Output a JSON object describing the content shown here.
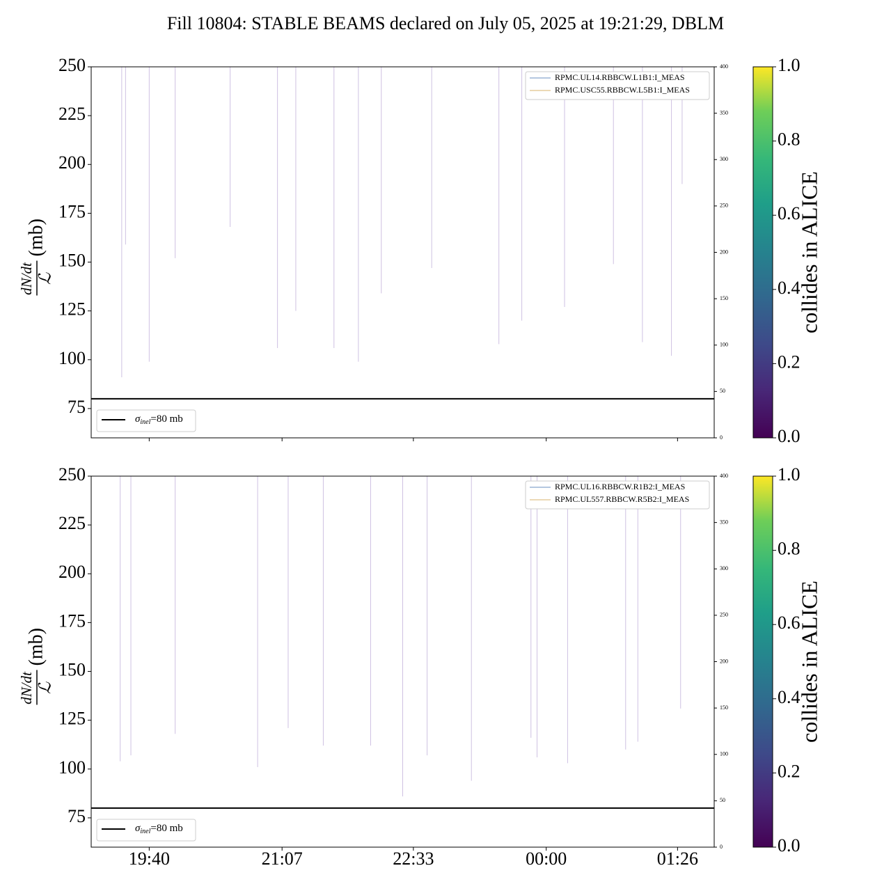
{
  "title": "Fill 10804: STABLE BEAMS declared on July 05, 2025 at 19:21:29, DBLM",
  "chart_data": [
    {
      "type": "line",
      "ylabel_num": "dN/dt",
      "ylabel_den": "ℒ",
      "ylabel_unit": "(mb)",
      "ylim": [
        60,
        250
      ],
      "yticks": [
        75,
        100,
        125,
        150,
        175,
        200,
        225,
        250
      ],
      "y2lim": [
        0,
        400
      ],
      "y2ticks": [
        0,
        50,
        100,
        150,
        200,
        250,
        300,
        350,
        400
      ],
      "xlim": [
        1142,
        1550
      ],
      "xticks": [
        1180,
        1267,
        1353,
        1440,
        1526
      ],
      "spikes": {
        "color": "#b9a6d6",
        "x": [
          1162,
          1164.5,
          1180,
          1197,
          1233,
          1264,
          1276,
          1301,
          1317,
          1332,
          1365,
          1409,
          1424,
          1452,
          1484,
          1503,
          1522,
          1529
        ],
        "values": [
          91,
          159,
          99,
          152,
          168,
          106,
          125,
          106,
          99,
          134,
          147,
          108,
          120,
          127,
          149,
          109,
          102,
          190
        ]
      },
      "series": [
        {
          "name": "RPMC.UL14.RBBCW.L1B1:I_MEAS",
          "color": "#6a8fc0",
          "axis": "y2",
          "x": [
            1161,
            1532
          ],
          "values": [
            0,
            0
          ]
        },
        {
          "name": "RPMC.USC55.RBBCW.L5B1:I_MEAS",
          "color": "#d9b36c",
          "axis": "y2",
          "x": [
            1161,
            1532
          ],
          "values": [
            0,
            0
          ]
        }
      ],
      "hline": {
        "value": 80,
        "color": "#000000",
        "label_symbol": "σ",
        "label_sub": "inel",
        "label_rest": "=80 mb"
      },
      "cbar_lim": [
        0,
        1
      ],
      "cbar_ticks": [
        {
          "value": 0,
          "label": "0.0"
        },
        {
          "value": 0.2,
          "label": "0.2"
        },
        {
          "value": 0.4,
          "label": "0.4"
        },
        {
          "value": 0.6,
          "label": "0.6"
        },
        {
          "value": 0.8,
          "label": "0.8"
        },
        {
          "value": 1,
          "label": "1.0"
        }
      ],
      "cbar_label": "collides in ALICE"
    },
    {
      "type": "line",
      "ylabel_num": "dN/dt",
      "ylabel_den": "ℒ",
      "ylabel_unit": "(mb)",
      "ylim": [
        60,
        250
      ],
      "yticks": [
        75,
        100,
        125,
        150,
        175,
        200,
        225,
        250
      ],
      "y2lim": [
        0,
        400
      ],
      "y2ticks": [
        0,
        50,
        100,
        150,
        200,
        250,
        300,
        350,
        400
      ],
      "xlim": [
        1142,
        1550
      ],
      "xticks": [
        {
          "value": 1180,
          "label": "19:40"
        },
        {
          "value": 1267,
          "label": "21:07"
        },
        {
          "value": 1353,
          "label": "22:33"
        },
        {
          "value": 1440,
          "label": "00:00"
        },
        {
          "value": 1526,
          "label": "01:26"
        }
      ],
      "spikes": {
        "color": "#b9a6d6",
        "x": [
          1161,
          1168,
          1197,
          1251,
          1271,
          1294,
          1325,
          1346,
          1362,
          1391,
          1430,
          1434,
          1454,
          1492,
          1500,
          1528
        ],
        "values": [
          104,
          107,
          118,
          101,
          121,
          112,
          112,
          86,
          107,
          94,
          116,
          106,
          103,
          110,
          114,
          131
        ]
      },
      "series": [
        {
          "name": "RPMC.UL16.RBBCW.R1B2:I_MEAS",
          "color": "#6a8fc0",
          "axis": "y2",
          "x": [
            1161,
            1532
          ],
          "values": [
            0,
            0
          ]
        },
        {
          "name": "RPMC.UL557.RBBCW.R5B2:I_MEAS",
          "color": "#d9b36c",
          "axis": "y2",
          "x": [
            1161,
            1532
          ],
          "values": [
            0,
            0
          ]
        }
      ],
      "hline": {
        "value": 80,
        "color": "#000000",
        "label_symbol": "σ",
        "label_sub": "inel",
        "label_rest": "=80 mb"
      },
      "cbar_lim": [
        0,
        1
      ],
      "cbar_ticks": [
        {
          "value": 0,
          "label": "0.0"
        },
        {
          "value": 0.2,
          "label": "0.2"
        },
        {
          "value": 0.4,
          "label": "0.4"
        },
        {
          "value": 0.6,
          "label": "0.6"
        },
        {
          "value": 0.8,
          "label": "0.8"
        },
        {
          "value": 1,
          "label": "1.0"
        }
      ],
      "cbar_label": "collides in ALICE"
    }
  ]
}
